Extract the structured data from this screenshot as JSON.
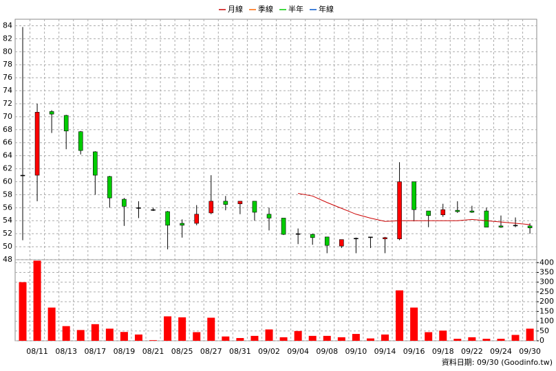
{
  "chart_data": {
    "type": "candlestick",
    "categories": [
      null,
      "08/11",
      null,
      "08/13",
      null,
      "08/17",
      null,
      "08/19",
      null,
      "08/21",
      null,
      "08/25",
      null,
      "08/27",
      null,
      "08/31",
      null,
      "09/02",
      null,
      "09/04",
      null,
      "09/08",
      null,
      "09/10",
      null,
      "09/14",
      null,
      "09/16",
      null,
      "09/18",
      null,
      "09/22",
      null,
      "09/24",
      null,
      "09/30"
    ],
    "open": [
      61,
      61,
      70.8,
      70.2,
      67.7,
      64.6,
      60.8,
      57.3,
      56,
      55.7,
      55.4,
      53.6,
      53.6,
      55.2,
      57,
      56.6,
      57,
      55,
      54.4,
      52,
      51.9,
      51.5,
      50.1,
      51.3,
      51.5,
      51.2,
      51.2,
      60,
      55.5,
      54.9,
      55.6,
      55.5,
      55.5,
      53.2,
      53.3,
      53.2
    ],
    "high": [
      83.8,
      72,
      71,
      70.3,
      67.8,
      64.7,
      60.9,
      57.5,
      57,
      56,
      55.5,
      54.2,
      56.4,
      61,
      57.8,
      57,
      57,
      56,
      54.4,
      52.8,
      52,
      51.5,
      51.1,
      51.4,
      51.5,
      51.5,
      63,
      60,
      55.5,
      56.6,
      57,
      56.3,
      56,
      54.8,
      54.5,
      53.6
    ],
    "low": [
      51,
      57,
      67.5,
      65,
      64.2,
      58,
      56,
      53.2,
      54.4,
      55.5,
      49.6,
      51.4,
      53.3,
      55,
      55.6,
      55,
      54,
      52.5,
      51.8,
      50.4,
      50.3,
      49,
      49.8,
      49,
      49.8,
      49,
      51,
      53.9,
      53,
      54.6,
      55.2,
      55.2,
      53,
      52.9,
      53,
      52
    ],
    "close": [
      61,
      70.7,
      70.4,
      67.8,
      64.8,
      61,
      57.5,
      56.2,
      56,
      55.7,
      53.3,
      53.3,
      55,
      57,
      56.5,
      57,
      55.3,
      54.4,
      51.9,
      52,
      51.4,
      50.2,
      51.1,
      51.3,
      51.5,
      51.4,
      60,
      55.7,
      54.8,
      55.7,
      55.4,
      55.3,
      53,
      53,
      53.3,
      52.9
    ],
    "up_color": "#ff0000",
    "down_color": "#00cc00",
    "volume": [
      300,
      410,
      170,
      75,
      55,
      85,
      62,
      45,
      32,
      3,
      125,
      120,
      44,
      118,
      22,
      14,
      25,
      58,
      18,
      50,
      25,
      25,
      18,
      35,
      12,
      32,
      258,
      170,
      44,
      52,
      10,
      18,
      10,
      10,
      30,
      62
    ],
    "volume_color": "#ff0000",
    "series": [
      {
        "name": "月線",
        "color": "#cc0000",
        "values": [
          null,
          null,
          null,
          null,
          null,
          null,
          null,
          null,
          null,
          null,
          null,
          null,
          null,
          null,
          null,
          null,
          null,
          null,
          null,
          58.2,
          57.8,
          56.8,
          55.9,
          55.0,
          54.4,
          53.9,
          54.0,
          54.0,
          54.0,
          54.0,
          54.0,
          54.2,
          54.0,
          53.8,
          53.6,
          53.4
        ]
      },
      {
        "name": "季線",
        "color": "#ff6600",
        "values": [
          null,
          null,
          null,
          null,
          null,
          null,
          null,
          null,
          null,
          null,
          null,
          null,
          null,
          null,
          null,
          null,
          null,
          null,
          null,
          null,
          null,
          null,
          null,
          null,
          null,
          null,
          null,
          null,
          null,
          null,
          null,
          null,
          null,
          null,
          null,
          null
        ]
      },
      {
        "name": "半年",
        "color": "#00cc00",
        "values": [
          null,
          null,
          null,
          null,
          null,
          null,
          null,
          null,
          null,
          null,
          null,
          null,
          null,
          null,
          null,
          null,
          null,
          null,
          null,
          null,
          null,
          null,
          null,
          null,
          null,
          null,
          null,
          null,
          null,
          null,
          null,
          null,
          null,
          null,
          null,
          null
        ]
      },
      {
        "name": "年線",
        "color": "#0055cc",
        "values": [
          null,
          null,
          null,
          null,
          null,
          null,
          null,
          null,
          null,
          null,
          null,
          null,
          null,
          null,
          null,
          null,
          null,
          null,
          null,
          null,
          null,
          null,
          null,
          null,
          null,
          null,
          null,
          null,
          null,
          null,
          null,
          null,
          null,
          null,
          null,
          null
        ]
      }
    ],
    "ylim": [
      48,
      85
    ],
    "yticks": [
      48,
      50,
      52,
      54,
      56,
      58,
      60,
      62,
      64,
      66,
      68,
      70,
      72,
      74,
      76,
      78,
      80,
      82,
      84
    ],
    "y2lim": [
      0,
      415
    ],
    "y2ticks": [
      0,
      50,
      100,
      150,
      200,
      250,
      300,
      350,
      400
    ],
    "grid": true,
    "footer": "資料日期: 09/30  (Goodinfo.tw)"
  }
}
